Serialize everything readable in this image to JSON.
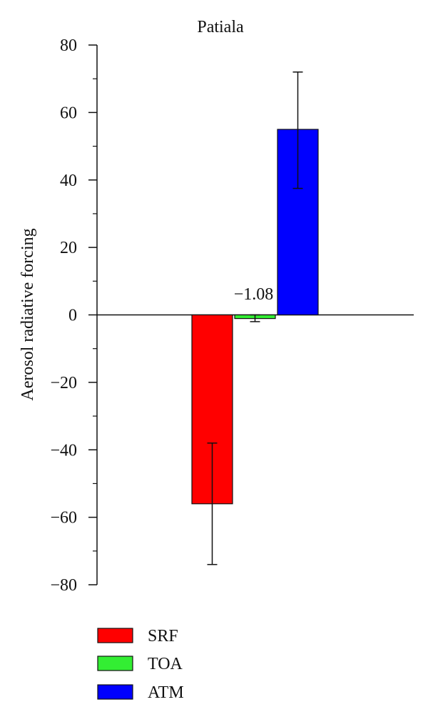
{
  "chart_data": {
    "type": "bar",
    "title": "Patiala",
    "ylabel": "Aerosol radiative forcing",
    "xlabel": "",
    "ylim": [
      -80,
      80
    ],
    "yticks": [
      -80,
      -60,
      -40,
      -20,
      0,
      20,
      40,
      60,
      80
    ],
    "categories": [
      "SRF",
      "TOA",
      "ATM"
    ],
    "series": [
      {
        "name": "SRF",
        "value": -56,
        "error_low": -74,
        "error_high": -38,
        "color": "#ff0000"
      },
      {
        "name": "TOA",
        "value": -1.08,
        "error_low": -2,
        "error_high": 0,
        "color": "#33ee33"
      },
      {
        "name": "ATM",
        "value": 55,
        "error_low": 37.5,
        "error_high": 72,
        "color": "#0000ff"
      }
    ],
    "annotations": [
      {
        "text": "−1.08",
        "target": "TOA"
      }
    ],
    "legend": {
      "placement": "bottom-left",
      "entries": [
        "SRF",
        "TOA",
        "ATM"
      ]
    },
    "grid": false
  }
}
